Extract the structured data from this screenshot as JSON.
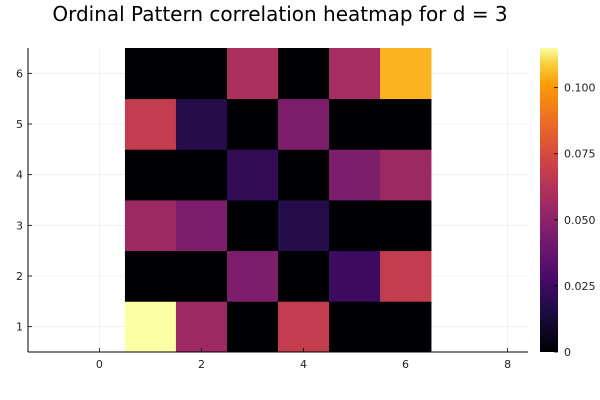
{
  "chart_data": {
    "type": "heatmap",
    "title": "Ordinal Pattern correlation heatmap for d = 3",
    "xlabel": "",
    "ylabel": "",
    "x": [
      1,
      2,
      3,
      4,
      5,
      6
    ],
    "y": [
      1,
      2,
      3,
      4,
      5,
      6
    ],
    "z": [
      [
        0.115,
        0.055,
        0.0,
        0.068,
        0.0,
        0.0
      ],
      [
        0.0,
        0.0,
        0.045,
        0.0,
        0.025,
        0.068
      ],
      [
        0.055,
        0.045,
        0.0,
        0.018,
        0.0,
        0.0
      ],
      [
        0.0,
        0.0,
        0.022,
        0.0,
        0.045,
        0.055
      ],
      [
        0.068,
        0.018,
        0.0,
        0.045,
        0.0,
        0.0
      ],
      [
        0.0,
        0.0,
        0.06,
        0.0,
        0.058,
        0.105
      ]
    ],
    "xlim": [
      -1.4,
      8.4
    ],
    "ylim": [
      0.5,
      6.5
    ],
    "xticks": [
      "0",
      "2",
      "4",
      "6",
      "8"
    ],
    "yticks": [
      "1",
      "2",
      "3",
      "4",
      "5",
      "6"
    ],
    "colorbar": {
      "min": 0,
      "max": 0.115,
      "colormap": "inferno",
      "ticks": [
        "0",
        "0.025",
        "0.050",
        "0.075",
        "0.100"
      ]
    },
    "grid": true
  }
}
